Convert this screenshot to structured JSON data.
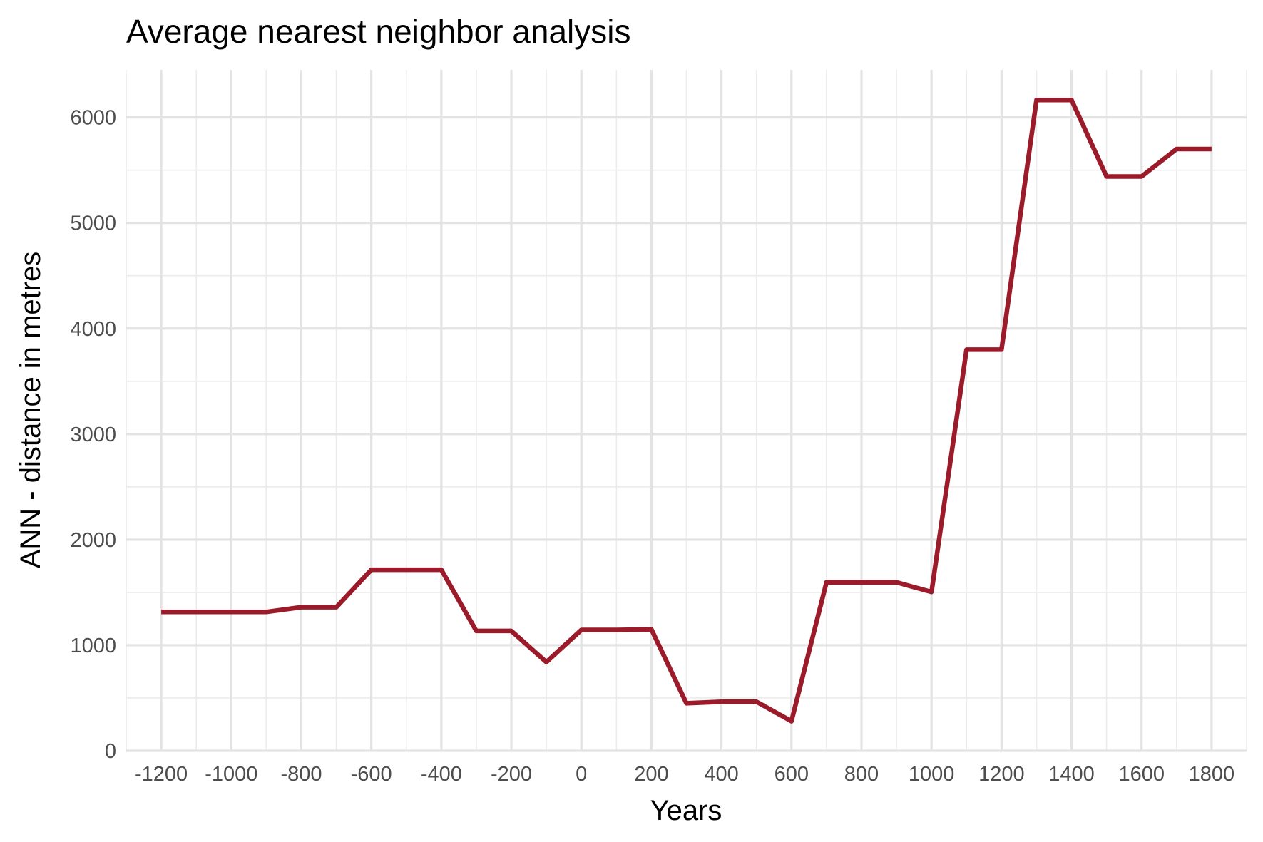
{
  "chart_data": {
    "type": "line",
    "title": "Average nearest neighbor analysis",
    "xlabel": "Years",
    "ylabel": "ANN - distance in metres",
    "xlim": [
      -1300,
      1900
    ],
    "ylim": [
      0,
      6450
    ],
    "x_ticks": [
      -1200,
      -1000,
      -800,
      -600,
      -400,
      -200,
      0,
      200,
      400,
      600,
      800,
      1000,
      1200,
      1400,
      1600,
      1800
    ],
    "x_tick_labels": [
      "-1200",
      "-1000",
      "-800",
      "-600",
      "-400",
      "-200",
      "0",
      "200",
      "400",
      "600",
      "800",
      "1000",
      "1200",
      "1400",
      "1600",
      "1800"
    ],
    "y_ticks": [
      0,
      1000,
      2000,
      3000,
      4000,
      5000,
      6000
    ],
    "y_tick_labels": [
      "0",
      "1000",
      "2000",
      "3000",
      "4000",
      "5000",
      "6000"
    ],
    "grid": true,
    "legend": "none",
    "series": [
      {
        "color": "#9b1b2a",
        "x": [
          -1200,
          -1100,
          -1000,
          -900,
          -800,
          -700,
          -600,
          -500,
          -400,
          -300,
          -200,
          -100,
          0,
          100,
          200,
          300,
          400,
          500,
          600,
          700,
          800,
          900,
          1000,
          1100,
          1200,
          1300,
          1400,
          1500,
          1600,
          1700,
          1800
        ],
        "y": [
          1315,
          1315,
          1315,
          1315,
          1360,
          1360,
          1715,
          1715,
          1715,
          1135,
          1135,
          840,
          1145,
          1145,
          1150,
          450,
          465,
          465,
          280,
          1595,
          1595,
          1595,
          1505,
          3800,
          3800,
          6165,
          6165,
          5440,
          5440,
          5700,
          5700
        ]
      }
    ]
  }
}
